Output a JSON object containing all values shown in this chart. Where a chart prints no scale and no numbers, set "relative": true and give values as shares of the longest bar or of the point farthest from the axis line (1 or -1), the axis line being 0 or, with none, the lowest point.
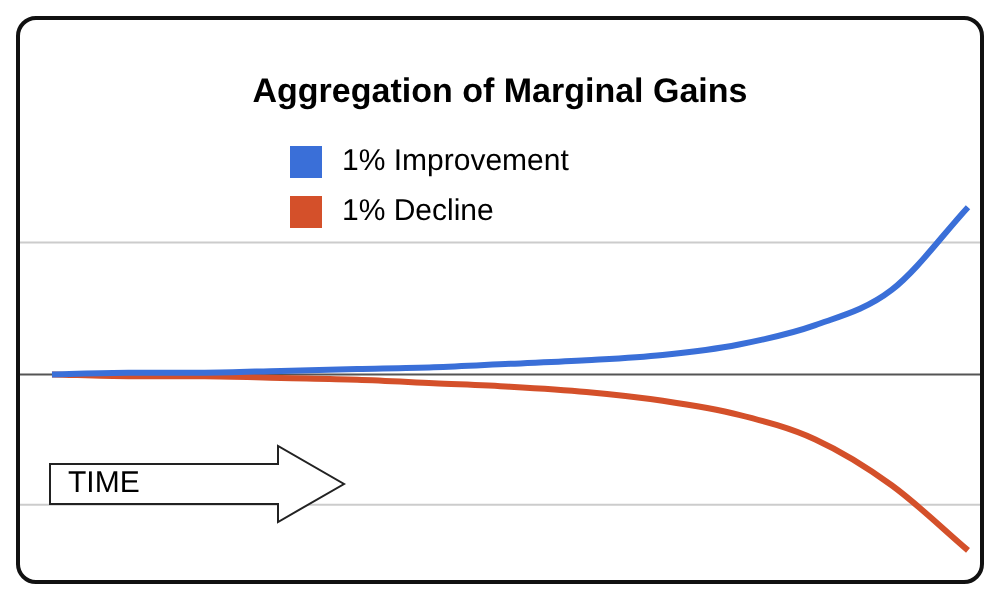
{
  "chart_data": {
    "type": "line",
    "title": "Aggregation of Marginal Gains",
    "relative": true,
    "legend": "top",
    "marker": "none",
    "line_style": "solid",
    "categories": [
      null,
      null,
      null,
      null,
      null,
      null,
      null,
      null,
      null,
      null,
      null,
      null,
      null
    ],
    "series": [
      {
        "name": "1% Improvement",
        "color": "#3a6fd8",
        "values": [
          0,
          0.01,
          0.01,
          0.02,
          0.03,
          0.04,
          0.06,
          0.08,
          0.11,
          0.17,
          0.28,
          0.48,
          0.95
        ]
      },
      {
        "name": "1% Decline",
        "color": "#d4502a",
        "values": [
          0,
          -0.01,
          -0.01,
          -0.02,
          -0.03,
          -0.05,
          -0.07,
          -0.1,
          -0.15,
          -0.23,
          -0.37,
          -0.63,
          -1
        ]
      }
    ],
    "ref_lines": [
      {
        "axis": "y",
        "value": 0.75,
        "color": "#cccccc"
      },
      {
        "axis": "y",
        "value": -0.74,
        "color": "#cccccc"
      }
    ],
    "annotations": [
      "TIME"
    ]
  }
}
